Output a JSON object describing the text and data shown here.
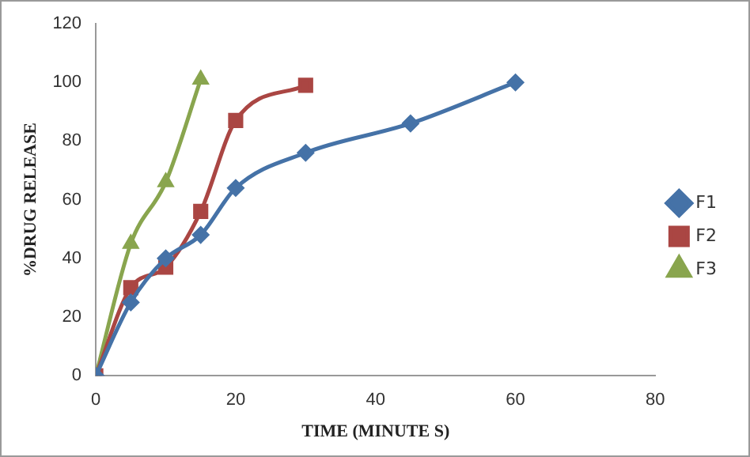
{
  "chart_data": {
    "type": "line",
    "xlabel": "TIME (MINUTE S)",
    "ylabel": "%DRUG RELEASE",
    "xlim": [
      0,
      80
    ],
    "xticks": [
      0,
      20,
      40,
      60,
      80
    ],
    "ylim": [
      0,
      120
    ],
    "yticks": [
      0,
      20,
      40,
      60,
      80,
      100,
      120
    ],
    "grid": false,
    "legend": "right",
    "series": [
      {
        "name": "F1",
        "color": "#4572a7",
        "marker": "diamond",
        "x": [
          0,
          5,
          10,
          15,
          20,
          30,
          45,
          60
        ],
        "values": [
          0,
          25,
          40,
          48,
          64,
          76,
          86,
          100
        ]
      },
      {
        "name": "F2",
        "color": "#aa4643",
        "marker": "square",
        "x": [
          0,
          5,
          10,
          15,
          20,
          30
        ],
        "values": [
          0,
          30,
          37,
          56,
          87,
          99
        ]
      },
      {
        "name": "F3",
        "color": "#89a54e",
        "marker": "triangle",
        "x": [
          0,
          5,
          10,
          15
        ],
        "values": [
          0,
          45,
          66,
          101
        ]
      }
    ]
  }
}
